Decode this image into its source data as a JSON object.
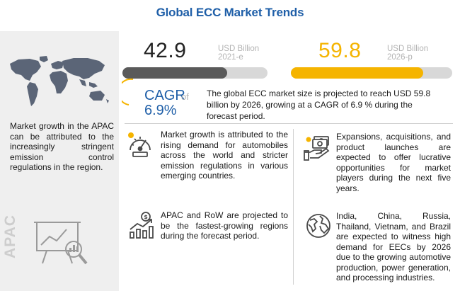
{
  "title": "Global ECC Market Trends",
  "left_panel": {
    "apac_text": "Market growth in the APAC can be attributed to the increasingly stringent emission control regulations in the region.",
    "vertical_label": "APAC"
  },
  "market_2021": {
    "value": "42.9",
    "unit": "USD Billion",
    "year": "2021-e",
    "bar_fill_fraction": 0.72,
    "bar_color": "#5a5a5a"
  },
  "market_2026": {
    "value": "59.8",
    "unit": "USD Billion",
    "year": "2026-p",
    "bar_fill_fraction": 0.82,
    "bar_color": "#f5b400"
  },
  "cagr": {
    "label": "CAGR",
    "of": "of",
    "value": "6.9%"
  },
  "forecast_text": "The global ECC market size is projected to reach USD 59.8 billion by 2026, growing at a CAGR of 6.9 % during the forecast period.",
  "cards": [
    {
      "icon": "gauge-icon",
      "text": "Market growth is attributed to the rising demand for automobiles across the world and stricter emission regulations in various emerging countries."
    },
    {
      "icon": "money-hand-icon",
      "text": "Expansions, acquisitions, and product launches are expected to offer lucrative opportunities for market players during the next five years."
    },
    {
      "icon": "growth-chart-icon",
      "text": "APAC and RoW are projected to be the fastest-growing regions during the forecast period."
    },
    {
      "icon": "globe-icon",
      "text": "India, China, Russia, Thailand, Vietnam, and Brazil are expected to witness high demand for EECs by 2026 due to the growing automotive production, power generation, and processing industries."
    }
  ],
  "colors": {
    "title": "#1f5fa8",
    "accent_yellow": "#f5b400",
    "map": "#5b6577",
    "panel_bg": "#efefef"
  }
}
